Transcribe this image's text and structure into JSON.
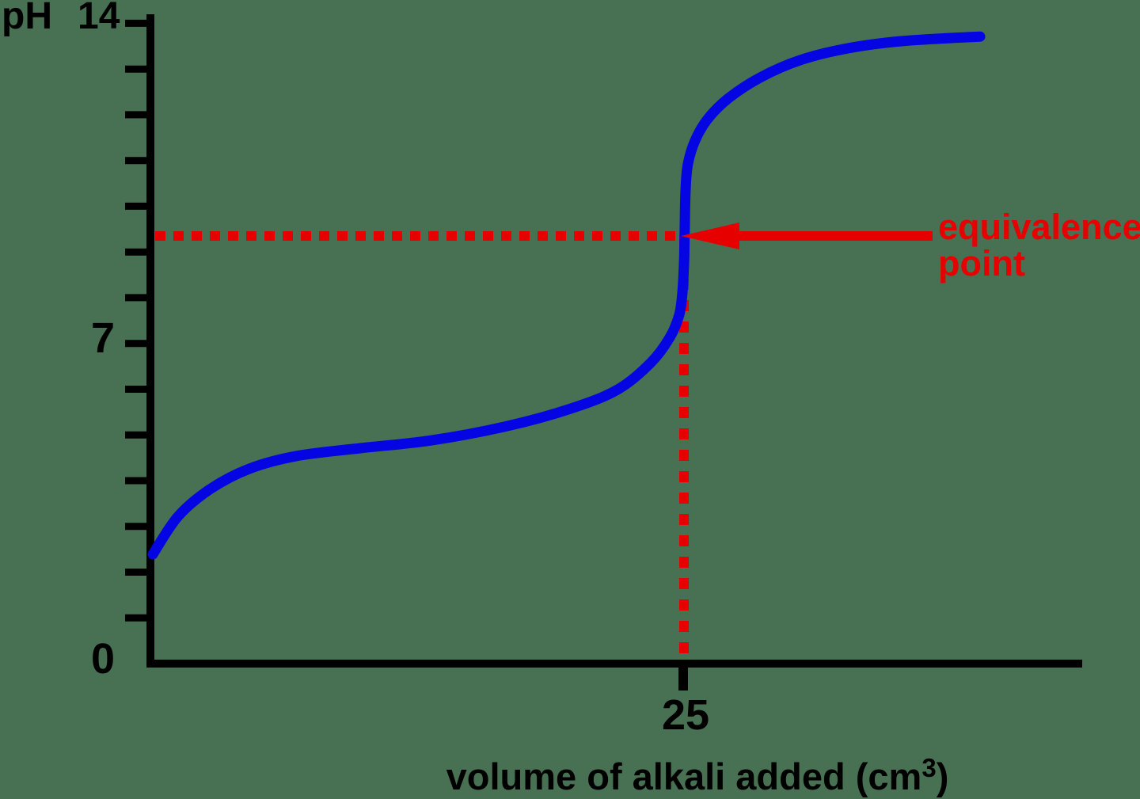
{
  "colors": {
    "background": "#487052",
    "curve": "#0505e4",
    "axis": "#000000",
    "annotation": "#e60000",
    "text": "#000000"
  },
  "labels": {
    "y_axis_title": "pH",
    "y_tick_14": "14",
    "y_tick_7": "7",
    "y_tick_0": "0",
    "x_tick_25": "25",
    "x_axis_title_main": "volume of alkali added (cm",
    "x_axis_title_sup": "3",
    "x_axis_title_end": ")",
    "equivalence_line1": "equivalence",
    "equivalence_line2": "point"
  },
  "chart_data": {
    "type": "line",
    "title": "",
    "xlabel": "volume of alkali added (cm3)",
    "ylabel": "pH",
    "xlim": [
      0,
      44
    ],
    "ylim": [
      0,
      14
    ],
    "x_ticks": [
      25
    ],
    "y_ticks": {
      "min": 1,
      "max": 14,
      "step": 1
    },
    "grid": false,
    "legend": "none",
    "series": [
      {
        "name": "titration curve (acid titrated with alkali)",
        "points": [
          [
            0.11,
            2.39
          ],
          [
            1.3,
            3.22
          ],
          [
            2.79,
            3.81
          ],
          [
            4.64,
            4.26
          ],
          [
            6.87,
            4.54
          ],
          [
            9.84,
            4.71
          ],
          [
            13.19,
            4.88
          ],
          [
            16.72,
            5.19
          ],
          [
            19.69,
            5.57
          ],
          [
            21.92,
            5.99
          ],
          [
            23.48,
            6.58
          ],
          [
            24.37,
            7.13
          ],
          [
            24.81,
            7.62
          ],
          [
            24.96,
            8.1
          ],
          [
            25.04,
            8.79
          ],
          [
            25.07,
            9.49
          ],
          [
            25.11,
            10.35
          ],
          [
            25.22,
            10.92
          ],
          [
            25.56,
            11.44
          ],
          [
            26.15,
            11.91
          ],
          [
            27.12,
            12.36
          ],
          [
            28.6,
            12.81
          ],
          [
            30.46,
            13.19
          ],
          [
            32.69,
            13.45
          ],
          [
            35.29,
            13.61
          ],
          [
            38.93,
            13.71
          ]
        ]
      }
    ],
    "annotations": {
      "equivalence_point": {
        "volume": 25,
        "ph": 9.35
      },
      "horizontal_guide": {
        "ph": 9.35,
        "from_volume": 0,
        "to_volume": 25,
        "style": "dashed red"
      },
      "vertical_guide": {
        "volume": 25,
        "from_ph": 9.35,
        "to_ph": 0,
        "style": "dashed red"
      },
      "arrow": {
        "points_to": "equivalence point on curve",
        "direction": "left"
      }
    }
  }
}
